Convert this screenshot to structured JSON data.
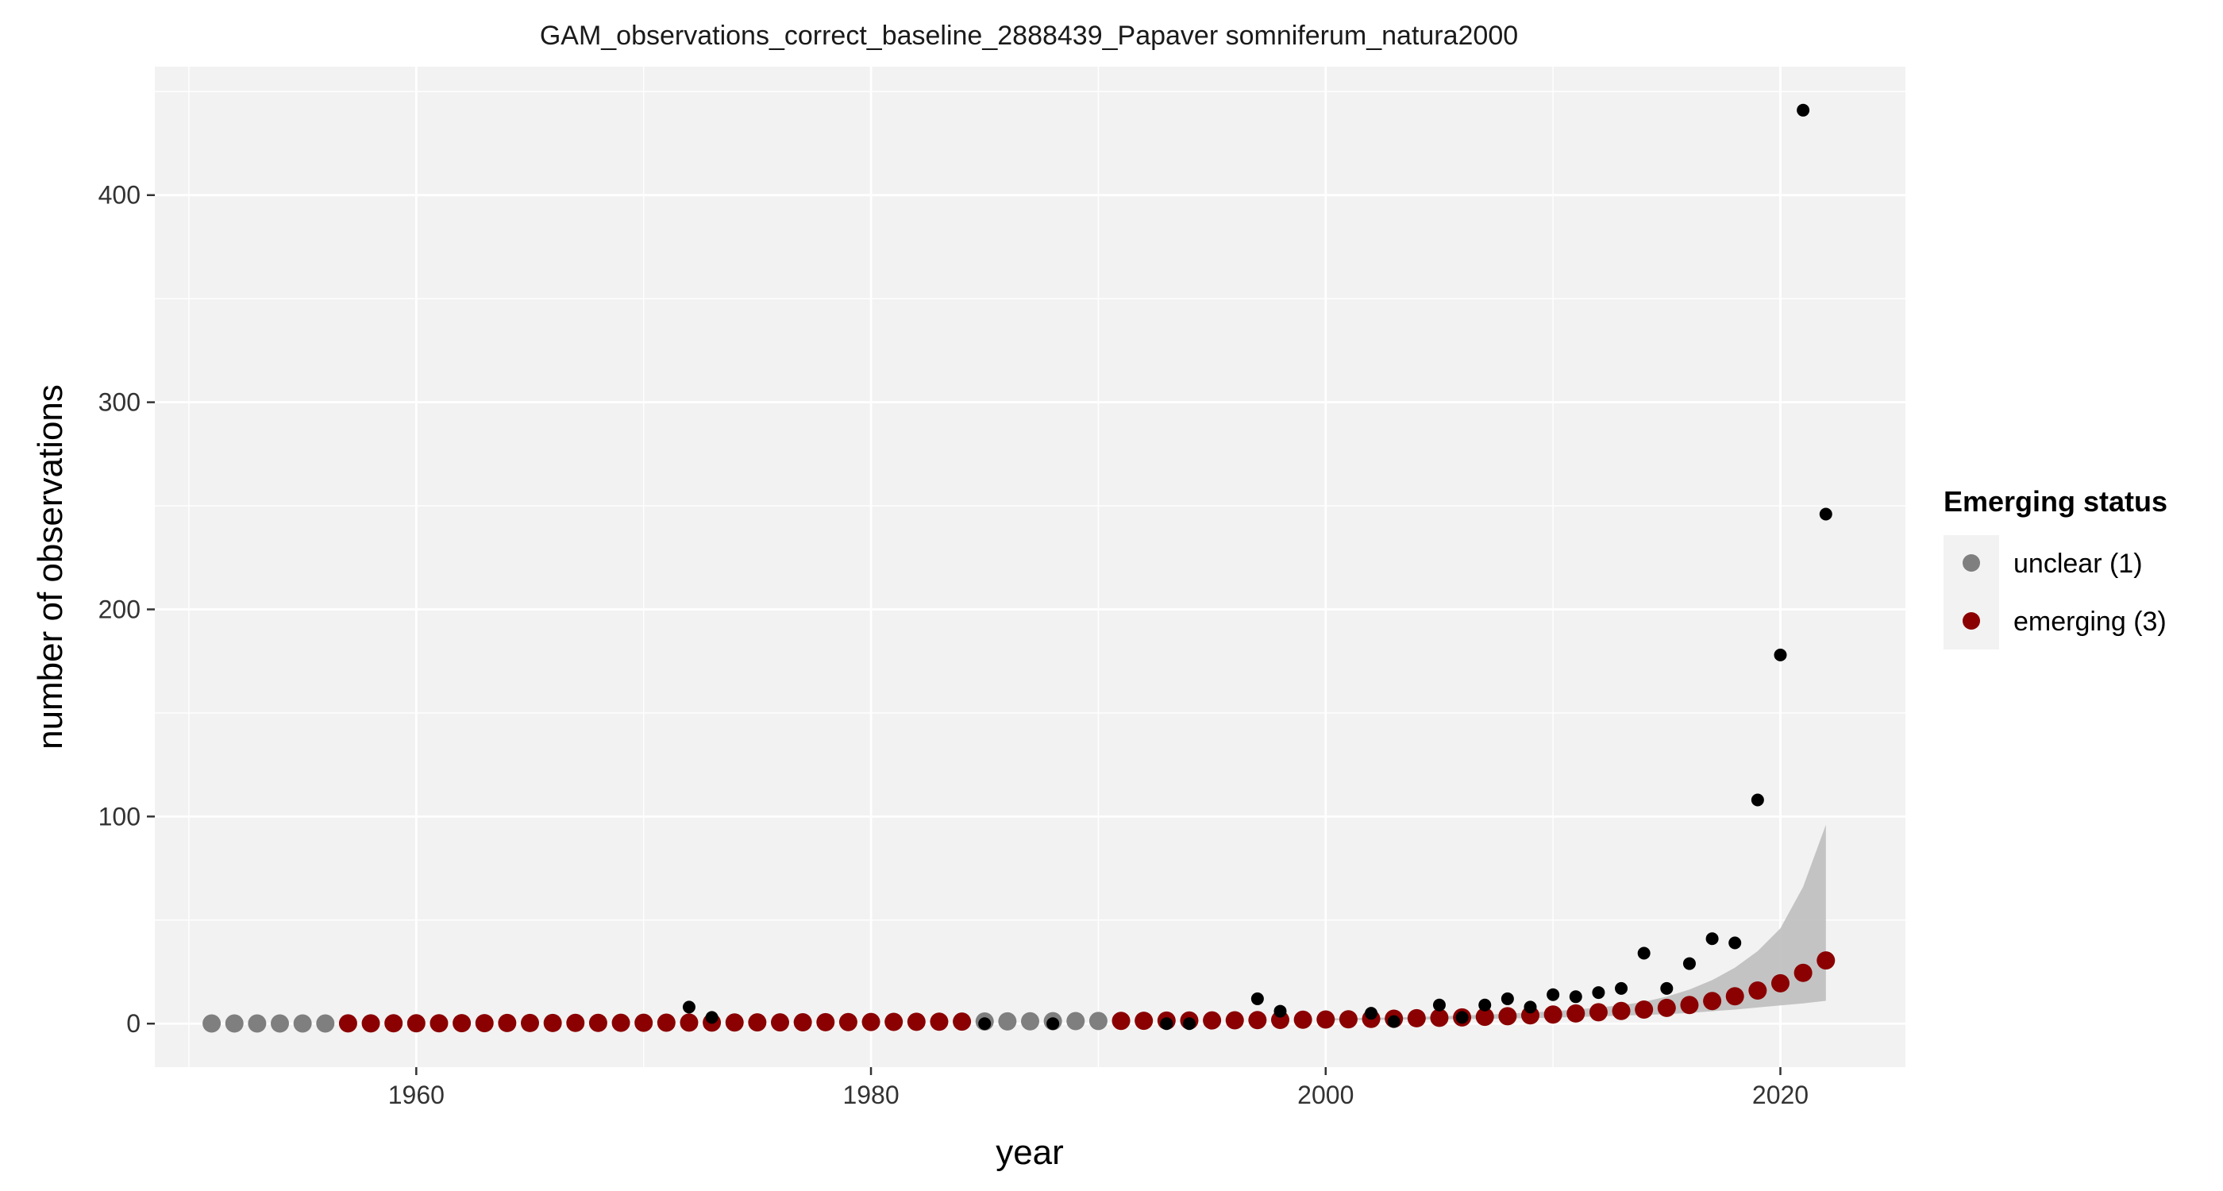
{
  "chart_data": {
    "type": "scatter",
    "title": "GAM_observations_correct_baseline_2888439_Papaver somniferum_natura2000",
    "xlabel": "year",
    "ylabel": "number of observations",
    "xlim": [
      1948.5,
      2025.5
    ],
    "ylim": [
      -21,
      462
    ],
    "x_ticks": [
      1960,
      1980,
      2000,
      2020
    ],
    "y_ticks": [
      0,
      100,
      200,
      300,
      400
    ],
    "x_tick_labels": [
      "1960",
      "1980",
      "2000",
      "2020"
    ],
    "y_tick_labels": [
      "0",
      "100",
      "200",
      "300",
      "400"
    ],
    "grid": true,
    "legend": {
      "title": "Emerging status",
      "position": "right",
      "items": [
        {
          "label": "unclear (1)",
          "color": "#7f7f7f"
        },
        {
          "label": "emerging (3)",
          "color": "#8b0000"
        }
      ]
    },
    "colors": {
      "panel": "#f2f2f2",
      "grid_major": "#ffffff",
      "ribbon": "#bebebe",
      "observed": "#000000",
      "unclear": "#7f7f7f",
      "emerging": "#8b0000"
    },
    "observed": {
      "x": [
        1972,
        1973,
        1985,
        1988,
        1993,
        1994,
        1997,
        1998,
        2002,
        2003,
        2005,
        2006,
        2007,
        2008,
        2009,
        2010,
        2011,
        2012,
        2013,
        2014,
        2015,
        2016,
        2017,
        2018,
        2019,
        2020,
        2021,
        2022
      ],
      "y": [
        8,
        3,
        0,
        0,
        0,
        0,
        12,
        6,
        5,
        1,
        9,
        3,
        9,
        12,
        8,
        14,
        13,
        15,
        17,
        34,
        17,
        29,
        41,
        39,
        108,
        178,
        441,
        246
      ]
    },
    "fitted": {
      "x": [
        1951,
        1952,
        1953,
        1954,
        1955,
        1956,
        1957,
        1958,
        1959,
        1960,
        1961,
        1962,
        1963,
        1964,
        1965,
        1966,
        1967,
        1968,
        1969,
        1970,
        1971,
        1972,
        1973,
        1974,
        1975,
        1976,
        1977,
        1978,
        1979,
        1980,
        1981,
        1982,
        1983,
        1984,
        1985,
        1986,
        1987,
        1988,
        1989,
        1990,
        1991,
        1992,
        1993,
        1994,
        1995,
        1996,
        1997,
        1998,
        1999,
        2000,
        2001,
        2002,
        2003,
        2004,
        2005,
        2006,
        2007,
        2008,
        2009,
        2010,
        2011,
        2012,
        2013,
        2014,
        2015,
        2016,
        2017,
        2018,
        2019,
        2020,
        2021,
        2022
      ],
      "y": [
        0.1,
        0.1,
        0.1,
        0.1,
        0.1,
        0.1,
        0.15,
        0.15,
        0.2,
        0.2,
        0.2,
        0.25,
        0.25,
        0.3,
        0.3,
        0.3,
        0.35,
        0.35,
        0.4,
        0.4,
        0.45,
        0.5,
        0.5,
        0.55,
        0.6,
        0.6,
        0.65,
        0.7,
        0.75,
        0.8,
        0.85,
        0.9,
        0.95,
        1.0,
        1.05,
        1.1,
        1.15,
        1.2,
        1.25,
        1.3,
        1.35,
        1.4,
        1.45,
        1.5,
        1.55,
        1.6,
        1.7,
        1.8,
        1.9,
        2.0,
        2.1,
        2.3,
        2.4,
        2.6,
        2.8,
        3.0,
        3.3,
        3.6,
        4.0,
        4.4,
        4.9,
        5.5,
        6.1,
        6.8,
        7.6,
        9.0,
        10.9,
        13.2,
        16.0,
        19.5,
        24.5,
        30.5
      ],
      "status": [
        "unclear",
        "unclear",
        "unclear",
        "unclear",
        "unclear",
        "unclear",
        "emerging",
        "emerging",
        "emerging",
        "emerging",
        "emerging",
        "emerging",
        "emerging",
        "emerging",
        "emerging",
        "emerging",
        "emerging",
        "emerging",
        "emerging",
        "emerging",
        "emerging",
        "emerging",
        "emerging",
        "emerging",
        "emerging",
        "emerging",
        "emerging",
        "emerging",
        "emerging",
        "emerging",
        "emerging",
        "emerging",
        "emerging",
        "emerging",
        "unclear",
        "unclear",
        "unclear",
        "unclear",
        "unclear",
        "unclear",
        "emerging",
        "emerging",
        "emerging",
        "emerging",
        "emerging",
        "emerging",
        "emerging",
        "emerging",
        "emerging",
        "emerging",
        "emerging",
        "emerging",
        "emerging",
        "emerging",
        "emerging",
        "emerging",
        "emerging",
        "emerging",
        "emerging",
        "emerging",
        "emerging",
        "emerging",
        "emerging",
        "emerging",
        "emerging",
        "emerging",
        "emerging",
        "emerging",
        "emerging",
        "emerging",
        "emerging",
        "emerging"
      ]
    },
    "ribbon": {
      "x": [
        2000,
        2002,
        2004,
        2006,
        2008,
        2010,
        2011,
        2012,
        2013,
        2014,
        2015,
        2016,
        2017,
        2018,
        2019,
        2020,
        2021,
        2022
      ],
      "lower": [
        1.6,
        1.8,
        2.0,
        2.2,
        2.5,
        2.9,
        3.2,
        3.5,
        3.8,
        4.2,
        4.6,
        5.2,
        6.0,
        6.8,
        7.8,
        8.8,
        9.8,
        11
      ],
      "upper": [
        2.5,
        2.8,
        3.2,
        3.9,
        4.8,
        6.0,
        6.8,
        7.8,
        8.9,
        10.5,
        13,
        16.5,
        21,
        27,
        35,
        46,
        66,
        96
      ]
    }
  }
}
